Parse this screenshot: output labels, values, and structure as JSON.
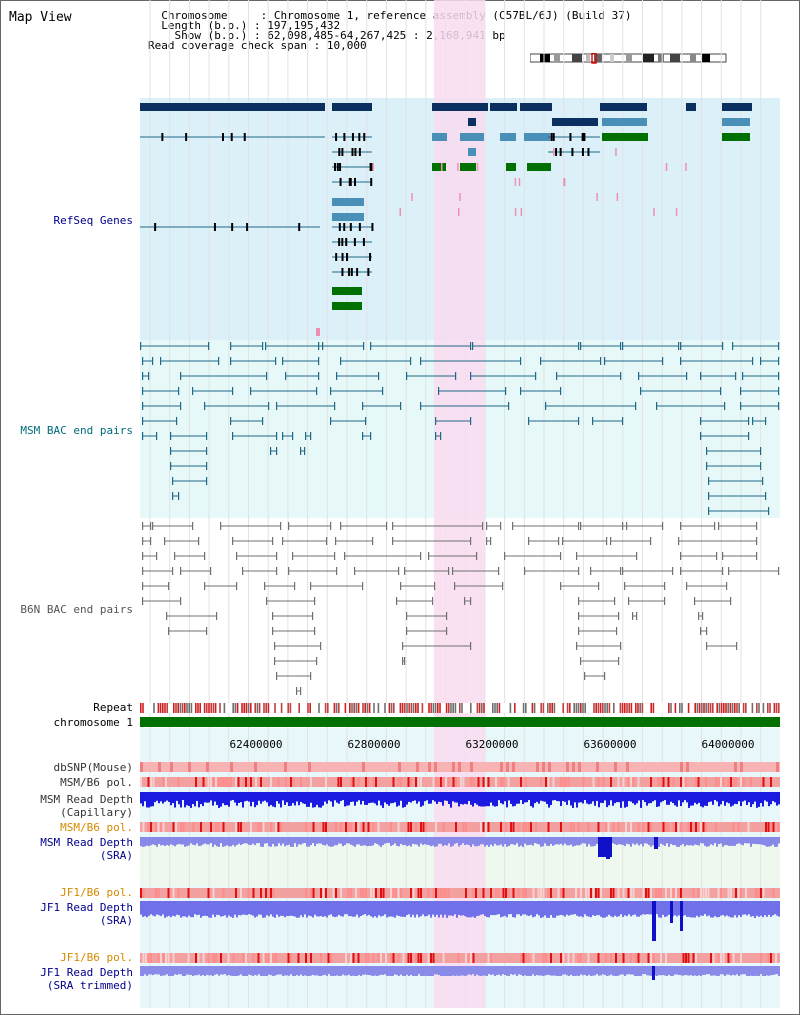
{
  "page": {
    "title": "Map View"
  },
  "info": {
    "chromosome_label": "Chromosome",
    "chromosome_value": "Chromosome 1, reference assembly (C57BL/6J) (Build 37)",
    "length_label": "Length (b.p.)",
    "length_value": "197,195,432",
    "show_label": "Show (b.p.)",
    "show_value": "62,098,485-64,267,425 : 2,168,941 bp",
    "coverage_label": "Read coverage check span",
    "coverage_value": "10,000"
  },
  "tracks": {
    "refseq": "RefSeq Genes",
    "msm_bac": "MSM BAC end pairs",
    "b6n_bac": "B6N BAC end pairs",
    "repeat": "Repeat",
    "chromosome": "chromosome 1",
    "dbsnp": "dbSNP(Mouse)",
    "msm_b6_pol": "MSM/B6 pol.",
    "msm_depth_cap_1": "MSM Read Depth",
    "msm_depth_cap_2": "(Capillary)",
    "msm_b6_pol2": "MSM/B6 pol.",
    "msm_depth_sra_1": "MSM Read Depth",
    "msm_depth_sra_2": "(SRA)",
    "jf1_pol": "JF1/B6 pol.",
    "jf1_depth_sra_1": "JF1 Read Depth",
    "jf1_depth_sra_2": "(SRA)",
    "jf1_pol2": "JF1/B6 pol.",
    "jf1_depth_trim_1": "JF1 Read Depth",
    "jf1_depth_trim_2": "(SRA trimmed)"
  },
  "axis": {
    "ticks": [
      "62400000",
      "62800000",
      "63200000",
      "63600000",
      "64000000"
    ]
  },
  "colors": {
    "refseq_bg": "#dcf0fa",
    "msm_bg": "#e6f8f8",
    "highlight": "#f8dcf0",
    "dark_navy": "#0b3060",
    "steel": "#4a8fb8",
    "green": "#007000",
    "pink": "#f090b0",
    "teal": "#206888",
    "grey": "#707070",
    "label_navy": "#00008b",
    "label_teal": "#006b7b",
    "label_orange": "#d48a00",
    "label_dark": "#333333"
  }
}
